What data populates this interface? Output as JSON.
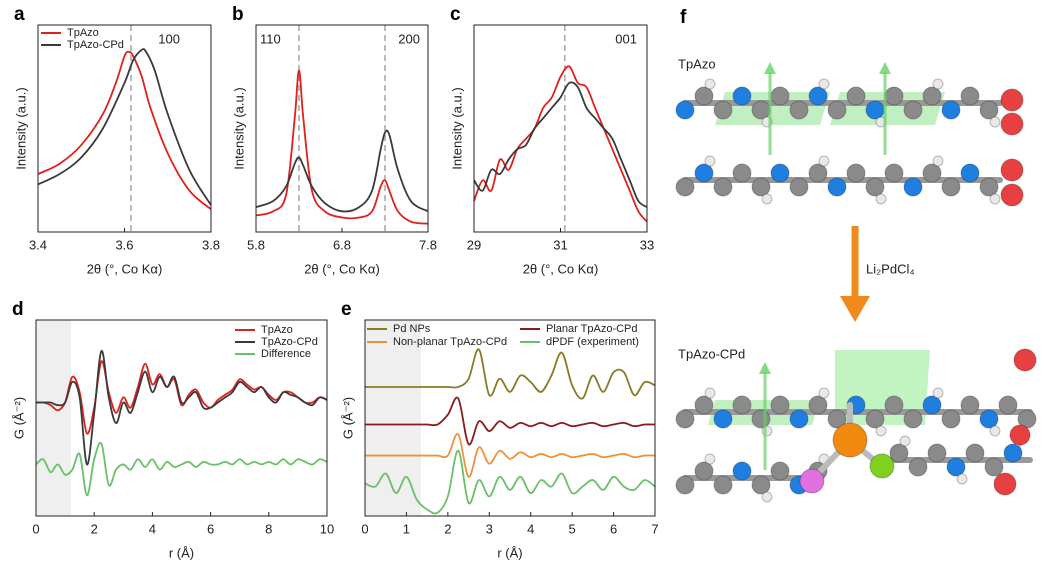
{
  "chart_data": [
    {
      "type": "line",
      "panel": "a",
      "xlabel": "2θ (°, Co Kα)",
      "ylabel": "Intensity (a.u.)",
      "xlim": [
        3.4,
        3.8
      ],
      "xticks": [
        3.4,
        3.6,
        3.8
      ],
      "ylim": [
        0,
        1
      ],
      "legend": "upper left",
      "annotations": [
        "100"
      ],
      "reference_lines": [
        3.615
      ],
      "series": [
        {
          "name": "TpAzo",
          "color": "#e0201b",
          "x": [
            3.4,
            3.45,
            3.5,
            3.55,
            3.58,
            3.6,
            3.61,
            3.62,
            3.64,
            3.66,
            3.7,
            3.75,
            3.8
          ],
          "values": [
            0.28,
            0.33,
            0.42,
            0.57,
            0.72,
            0.85,
            0.87,
            0.85,
            0.75,
            0.6,
            0.38,
            0.2,
            0.11
          ]
        },
        {
          "name": "TpAzo-CPd",
          "color": "#3a3a3a",
          "x": [
            3.4,
            3.45,
            3.5,
            3.55,
            3.6,
            3.62,
            3.64,
            3.65,
            3.67,
            3.7,
            3.75,
            3.8
          ],
          "values": [
            0.23,
            0.28,
            0.36,
            0.5,
            0.72,
            0.83,
            0.88,
            0.87,
            0.78,
            0.57,
            0.3,
            0.13
          ]
        }
      ]
    },
    {
      "type": "line",
      "panel": "b",
      "xlabel": "2θ (°, Co Kα)",
      "ylabel": "Intensity (a.u.)",
      "xlim": [
        5.8,
        7.8
      ],
      "xticks": [
        5.8,
        6.8,
        7.8
      ],
      "ylim": [
        0,
        1
      ],
      "annotations": [
        "110",
        "200"
      ],
      "reference_lines": [
        6.3,
        7.3
      ],
      "x": [
        5.8,
        6.0,
        6.15,
        6.25,
        6.3,
        6.35,
        6.45,
        6.6,
        6.8,
        7.0,
        7.15,
        7.25,
        7.3,
        7.35,
        7.45,
        7.6,
        7.8
      ],
      "series": [
        {
          "name": "TpAzo",
          "color": "#e0201b",
          "values": [
            0.08,
            0.1,
            0.18,
            0.55,
            0.78,
            0.55,
            0.2,
            0.1,
            0.07,
            0.07,
            0.1,
            0.22,
            0.25,
            0.2,
            0.1,
            0.05,
            0.04
          ]
        },
        {
          "name": "TpAzo-CPd",
          "color": "#3a3a3a",
          "values": [
            0.12,
            0.15,
            0.22,
            0.33,
            0.36,
            0.32,
            0.22,
            0.14,
            0.1,
            0.12,
            0.2,
            0.4,
            0.48,
            0.47,
            0.3,
            0.15,
            0.1
          ]
        }
      ]
    },
    {
      "type": "line",
      "panel": "c",
      "xlabel": "2θ (°, Co Kα)",
      "ylabel": "Intensity (a.u.)",
      "xlim": [
        29,
        33
      ],
      "xticks": [
        29,
        31,
        33
      ],
      "ylim": [
        0,
        1
      ],
      "annotations": [
        "001"
      ],
      "reference_lines": [
        31.1
      ],
      "x": [
        29,
        29.2,
        29.4,
        29.6,
        29.8,
        30,
        30.2,
        30.4,
        30.6,
        30.8,
        31,
        31.2,
        31.4,
        31.6,
        31.8,
        32,
        32.2,
        32.4,
        32.6,
        32.8,
        33
      ],
      "series": [
        {
          "name": "TpAzo",
          "color": "#e0201b",
          "values": [
            0.15,
            0.25,
            0.2,
            0.35,
            0.3,
            0.4,
            0.45,
            0.5,
            0.6,
            0.65,
            0.75,
            0.8,
            0.72,
            0.7,
            0.6,
            0.5,
            0.4,
            0.3,
            0.2,
            0.1,
            0.05
          ]
        },
        {
          "name": "TpAzo-CPd",
          "color": "#3a3a3a",
          "values": [
            0.25,
            0.2,
            0.3,
            0.28,
            0.35,
            0.4,
            0.42,
            0.5,
            0.55,
            0.6,
            0.65,
            0.72,
            0.7,
            0.6,
            0.55,
            0.5,
            0.45,
            0.35,
            0.25,
            0.15,
            0.12
          ]
        }
      ]
    },
    {
      "type": "line",
      "panel": "d",
      "xlabel": "r (Å)",
      "ylabel": "G (Å⁻²)",
      "xlim": [
        0,
        10
      ],
      "xticks": [
        0,
        2,
        4,
        6,
        8,
        10
      ],
      "ylim": [
        -2.2,
        1.6
      ],
      "legend": "upper right",
      "shaded_range": [
        0,
        1.2
      ],
      "x": [
        0,
        0.25,
        0.5,
        0.75,
        1,
        1.25,
        1.5,
        1.75,
        2,
        2.25,
        2.5,
        2.75,
        3,
        3.25,
        3.5,
        3.75,
        4,
        4.25,
        4.5,
        4.75,
        5,
        5.25,
        5.5,
        5.75,
        6,
        6.25,
        6.5,
        6.75,
        7,
        7.25,
        7.5,
        7.75,
        8,
        8.25,
        8.5,
        8.75,
        9,
        9.25,
        9.5,
        9.75,
        10
      ],
      "series": [
        {
          "name": "TpAzo",
          "color": "#e0201b",
          "values": [
            0,
            0,
            -0.05,
            -0.15,
            0,
            0.5,
            0.2,
            -0.6,
            -0.1,
            0.8,
            0.2,
            -0.2,
            0.1,
            -0.1,
            0.3,
            0.75,
            0.35,
            0.55,
            0.3,
            0.45,
            -0.05,
            0.15,
            0.25,
            0,
            -0.1,
            0.05,
            0.15,
            0.25,
            0.45,
            0.35,
            0.25,
            0.3,
            0.15,
            0.05,
            0.2,
            0.2,
            0.1,
            0,
            0,
            0.1,
            0.05
          ]
        },
        {
          "name": "TpAzo-CPd",
          "color": "#3a3a3a",
          "values": [
            0,
            0,
            0,
            -0.05,
            0,
            0.4,
            0.1,
            -1.2,
            -0.2,
            1.0,
            0.1,
            -0.4,
            0,
            -0.2,
            0.2,
            0.6,
            0.2,
            0.5,
            0.3,
            0.5,
            0,
            0.1,
            0.2,
            -0.1,
            -0.1,
            0,
            0.1,
            0.2,
            0.4,
            0.3,
            0.2,
            0.3,
            0.1,
            0,
            0.2,
            0.15,
            0.1,
            0,
            -0.05,
            0.1,
            0.05
          ]
        },
        {
          "name": "Difference",
          "color": "#6abf69",
          "values": [
            -1.2,
            -1.1,
            -1.35,
            -1.2,
            -1.4,
            -1.3,
            -1.0,
            -1.8,
            -1.1,
            -0.8,
            -1.6,
            -1.3,
            -1.2,
            -1.3,
            -1.1,
            -1.25,
            -1.1,
            -1.3,
            -1.15,
            -1.25,
            -1.2,
            -1.15,
            -1.25,
            -1.15,
            -1.2,
            -1.2,
            -1.15,
            -1.2,
            -1.1,
            -1.2,
            -1.15,
            -1.2,
            -1.15,
            -1.2,
            -1.1,
            -1.2,
            -1.1,
            -1.15,
            -1.2,
            -1.1,
            -1.15
          ]
        }
      ]
    },
    {
      "type": "line",
      "panel": "e",
      "xlabel": "r (Å)",
      "ylabel": "G (Å⁻²)",
      "xlim": [
        0,
        7
      ],
      "xticks": [
        0,
        1,
        2,
        3,
        4,
        5,
        6,
        7
      ],
      "ylim": [
        0,
        6
      ],
      "legend": "upper",
      "shaded_range": [
        0,
        1.35
      ],
      "x": [
        0,
        0.25,
        0.5,
        0.75,
        1,
        1.25,
        1.5,
        1.75,
        2,
        2.25,
        2.5,
        2.75,
        3,
        3.25,
        3.5,
        3.75,
        4,
        4.25,
        4.5,
        4.75,
        5,
        5.25,
        5.5,
        5.75,
        6,
        6.25,
        6.5,
        6.75,
        7
      ],
      "series": [
        {
          "name": "Pd NPs",
          "color": "#8a7a24",
          "values": [
            3.95,
            3.95,
            3.95,
            3.95,
            3.95,
            3.95,
            3.95,
            3.95,
            3.95,
            3.95,
            4.2,
            5.1,
            3.7,
            4.2,
            3.8,
            4.3,
            4.1,
            3.8,
            4.3,
            5.0,
            4.0,
            3.6,
            4.3,
            3.8,
            4.4,
            4.4,
            3.7,
            4.1,
            4.0
          ]
        },
        {
          "name": "Planar TpAzo-CPd",
          "color": "#8b1a1a",
          "values": [
            2.8,
            2.8,
            2.8,
            2.8,
            2.8,
            2.8,
            2.8,
            2.8,
            3.1,
            3.6,
            2.2,
            2.9,
            2.6,
            2.9,
            2.7,
            2.85,
            2.75,
            2.85,
            2.75,
            2.85,
            2.75,
            2.8,
            2.85,
            2.75,
            2.8,
            2.85,
            2.75,
            2.8,
            2.8
          ]
        },
        {
          "name": "Non-planar TpAzo-CPd",
          "color": "#f0913a",
          "values": [
            1.85,
            1.85,
            1.85,
            1.85,
            1.85,
            1.85,
            1.85,
            1.85,
            1.85,
            2.5,
            1.2,
            2.1,
            1.6,
            2.0,
            1.75,
            1.95,
            1.8,
            1.9,
            1.8,
            1.9,
            1.8,
            1.85,
            1.9,
            1.8,
            1.85,
            1.9,
            1.8,
            1.85,
            1.85
          ]
        },
        {
          "name": "dPDF (experiment)",
          "color": "#6abf69",
          "values": [
            1.0,
            0.9,
            1.3,
            0.7,
            1.2,
            0.5,
            0.2,
            0.1,
            0.6,
            2.0,
            0.4,
            1.1,
            0.6,
            1.2,
            0.8,
            1.2,
            0.7,
            1.1,
            0.9,
            1.3,
            0.7,
            0.9,
            1.1,
            0.8,
            1.2,
            0.9,
            0.8,
            1.1,
            0.9
          ]
        }
      ]
    }
  ],
  "diagram": {
    "panel": "f",
    "top_label": "TpAzo",
    "arrow_label": "Li₂PdCl₄",
    "bottom_label": "TpAzo-CPd"
  }
}
